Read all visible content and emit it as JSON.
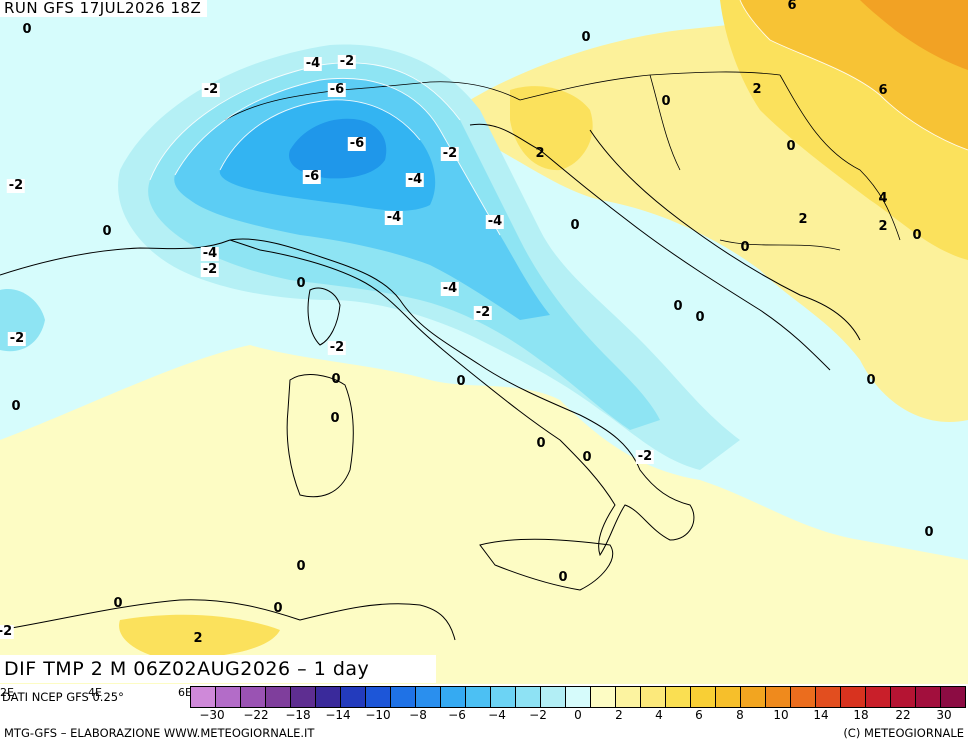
{
  "header": {
    "run_title": "RUN GFS 17JUL2026 18Z"
  },
  "map_title": "DIF TMP 2 M 06Z02AUG2026 – 1 day",
  "colors": {
    "sea_base": "#d6fcfc",
    "land_neutral": "#fdfcc4",
    "warm_1": "#fcf19a",
    "warm_2": "#fbe15c",
    "warm_3": "#f7c335",
    "warm_4": "#f2a224",
    "cool_1": "#b5f0f5",
    "cool_2": "#8ee4f3",
    "cool_3": "#5ccdf4",
    "cool_4": "#33b4f2",
    "cool_5": "#1f97ea"
  },
  "source_label": "DATI NCEP GFS 0.25°",
  "lon_ticks": [
    "2E",
    "4E",
    "6E"
  ],
  "colorbar": {
    "swatches": [
      "#cf89d9",
      "#b36cc8",
      "#9a53b3",
      "#7f3e9c",
      "#5e2e91",
      "#3a2a9b",
      "#233bbd",
      "#1d56d8",
      "#1f72e6",
      "#2a8fee",
      "#35aaf2",
      "#4cc0f3",
      "#6cd3f4",
      "#8ee2f4",
      "#b2eef5",
      "#d6fbfb",
      "#fdfcc4",
      "#fcf3a0",
      "#fce97b",
      "#fadf52",
      "#f8cf35",
      "#f6bf2b",
      "#f2a520",
      "#ef8a1d",
      "#eb6d1e",
      "#e24e1f",
      "#d8331f",
      "#c91f2a",
      "#b51433",
      "#a20f3d",
      "#8c0c43"
    ],
    "ticks": [
      "−30",
      "−22",
      "−18",
      "−14",
      "−10",
      "−8",
      "−6",
      "−4",
      "−2",
      "0",
      "2",
      "4",
      "6",
      "8",
      "10",
      "14",
      "18",
      "22",
      "30"
    ]
  },
  "footer": {
    "left": "MTG-GFS – ELABORAZIONE WWW.METEOGIORNALE.IT",
    "right": "(C) METEOGIORNALE"
  },
  "contour_labels": [
    {
      "text": "0",
      "box": false
    },
    {
      "text": "6",
      "box": false
    },
    {
      "text": "0",
      "box": false
    },
    {
      "text": "-4",
      "box": true
    },
    {
      "text": "-2",
      "box": true
    },
    {
      "text": "-2",
      "box": true
    },
    {
      "text": "0",
      "box": false
    },
    {
      "text": "2",
      "box": false
    },
    {
      "text": "6",
      "box": false
    },
    {
      "text": "-6",
      "box": true
    },
    {
      "text": "-2",
      "box": true
    },
    {
      "text": "2",
      "box": false
    },
    {
      "text": "0",
      "box": false
    },
    {
      "text": "-6",
      "box": true
    },
    {
      "text": "-6",
      "box": true
    },
    {
      "text": "-2",
      "box": true
    },
    {
      "text": "-4",
      "box": true
    },
    {
      "text": "-4",
      "box": true
    },
    {
      "text": "-4",
      "box": true
    },
    {
      "text": "0",
      "box": false
    },
    {
      "text": "2",
      "box": false
    },
    {
      "text": "4",
      "box": false
    },
    {
      "text": "2",
      "box": false
    },
    {
      "text": "0",
      "box": false
    },
    {
      "text": "0",
      "box": false
    },
    {
      "text": "-4",
      "box": true
    },
    {
      "text": "-2",
      "box": true
    },
    {
      "text": "0",
      "box": false
    },
    {
      "text": "0",
      "box": false
    },
    {
      "text": "0",
      "box": false
    },
    {
      "text": "-4",
      "box": true
    },
    {
      "text": "-2",
      "box": true
    },
    {
      "text": "-2",
      "box": true
    },
    {
      "text": "-2",
      "box": true
    },
    {
      "text": "0",
      "box": false
    },
    {
      "text": "0",
      "box": false
    },
    {
      "text": "0",
      "box": false
    },
    {
      "text": "0",
      "box": false
    },
    {
      "text": "0",
      "box": false
    },
    {
      "text": "0",
      "box": false
    },
    {
      "text": "-2",
      "box": true
    },
    {
      "text": "0",
      "box": false
    },
    {
      "text": "0",
      "box": false
    },
    {
      "text": "0",
      "box": false
    },
    {
      "text": "0",
      "box": false
    },
    {
      "text": "0",
      "box": false
    },
    {
      "text": "2",
      "box": false
    },
    {
      "text": "0",
      "box": false
    },
    {
      "text": "0",
      "box": false
    },
    {
      "text": "-2",
      "box": true
    }
  ]
}
